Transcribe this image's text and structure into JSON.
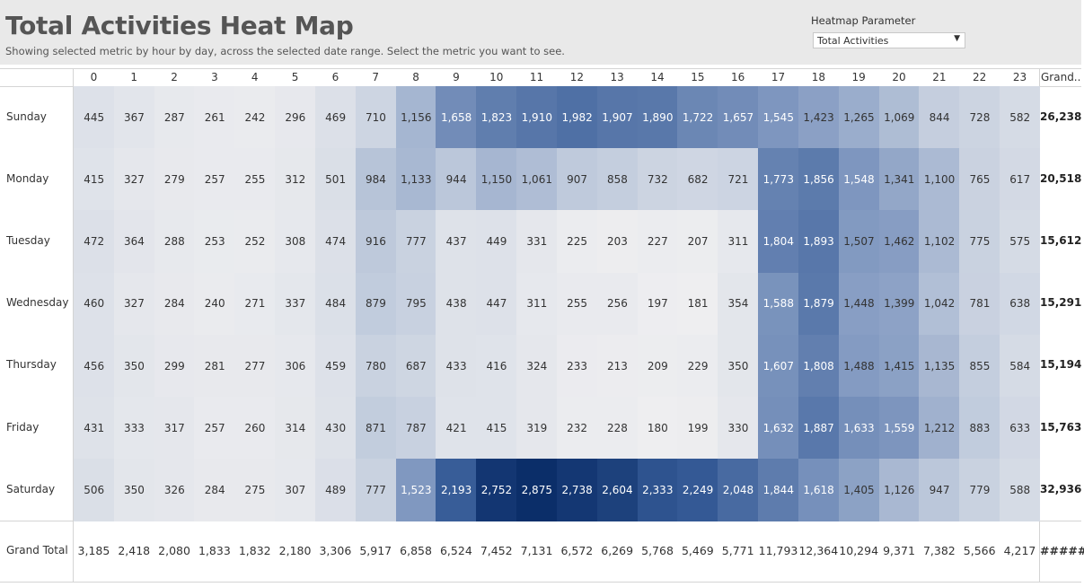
{
  "header": {
    "title": "Total Activities Heat Map",
    "subtitle": "Showing selected metric by hour by day, across the selected date range. Select the metric you want to see.",
    "parameter_label": "Heatmap Parameter",
    "parameter_value": "Total Activities"
  },
  "chart_data": {
    "type": "heatmap",
    "title": "Total Activities Heat Map",
    "x_categories": [
      "0",
      "1",
      "2",
      "3",
      "4",
      "5",
      "6",
      "7",
      "8",
      "9",
      "10",
      "11",
      "12",
      "13",
      "14",
      "15",
      "16",
      "17",
      "18",
      "19",
      "20",
      "21",
      "22",
      "23"
    ],
    "y_categories": [
      "Sunday",
      "Monday",
      "Tuesday",
      "Wednesday",
      "Thursday",
      "Friday",
      "Saturday"
    ],
    "values": [
      [
        445,
        367,
        287,
        261,
        242,
        296,
        469,
        710,
        1156,
        1658,
        1823,
        1910,
        1982,
        1907,
        1890,
        1722,
        1657,
        1545,
        1423,
        1265,
        1069,
        844,
        728,
        582
      ],
      [
        415,
        327,
        279,
        257,
        255,
        312,
        501,
        984,
        1133,
        944,
        1150,
        1061,
        907,
        858,
        732,
        682,
        721,
        1773,
        1856,
        1548,
        1341,
        1100,
        765,
        617
      ],
      [
        472,
        364,
        288,
        253,
        252,
        308,
        474,
        916,
        777,
        437,
        449,
        331,
        225,
        203,
        227,
        207,
        311,
        1804,
        1893,
        1507,
        1462,
        1102,
        775,
        575
      ],
      [
        460,
        327,
        284,
        240,
        271,
        337,
        484,
        879,
        795,
        438,
        447,
        311,
        255,
        256,
        197,
        181,
        354,
        1588,
        1879,
        1448,
        1399,
        1042,
        781,
        638
      ],
      [
        456,
        350,
        299,
        281,
        277,
        306,
        459,
        780,
        687,
        433,
        416,
        324,
        233,
        213,
        209,
        229,
        350,
        1607,
        1808,
        1488,
        1415,
        1135,
        855,
        584
      ],
      [
        431,
        333,
        317,
        257,
        260,
        314,
        430,
        871,
        787,
        421,
        415,
        319,
        232,
        228,
        180,
        199,
        330,
        1632,
        1887,
        1633,
        1559,
        1212,
        883,
        633
      ],
      [
        506,
        350,
        326,
        284,
        275,
        307,
        489,
        777,
        1523,
        2193,
        2752,
        2875,
        2738,
        2604,
        2333,
        2249,
        2048,
        1844,
        1618,
        1405,
        1126,
        947,
        779,
        588
      ]
    ],
    "row_totals": [
      "26,238",
      "20,518",
      "15,612",
      "15,291",
      "15,194",
      "15,763",
      "32,936"
    ],
    "column_totals": [
      "3,185",
      "2,418",
      "2,080",
      "1,833",
      "1,832",
      "2,180",
      "3,306",
      "5,917",
      "6,858",
      "6,524",
      "7,452",
      "7,131",
      "6,572",
      "6,269",
      "5,768",
      "5,469",
      "5,771",
      "11,793",
      "12,364",
      "10,294",
      "9,371",
      "7,382",
      "5,566",
      "4,217"
    ],
    "grand_total_display": "#####",
    "row_total_header": "Grand..",
    "column_total_label": "Grand Total",
    "color_scale": {
      "low": "#eeeeee",
      "high": "#0b2e69"
    }
  }
}
